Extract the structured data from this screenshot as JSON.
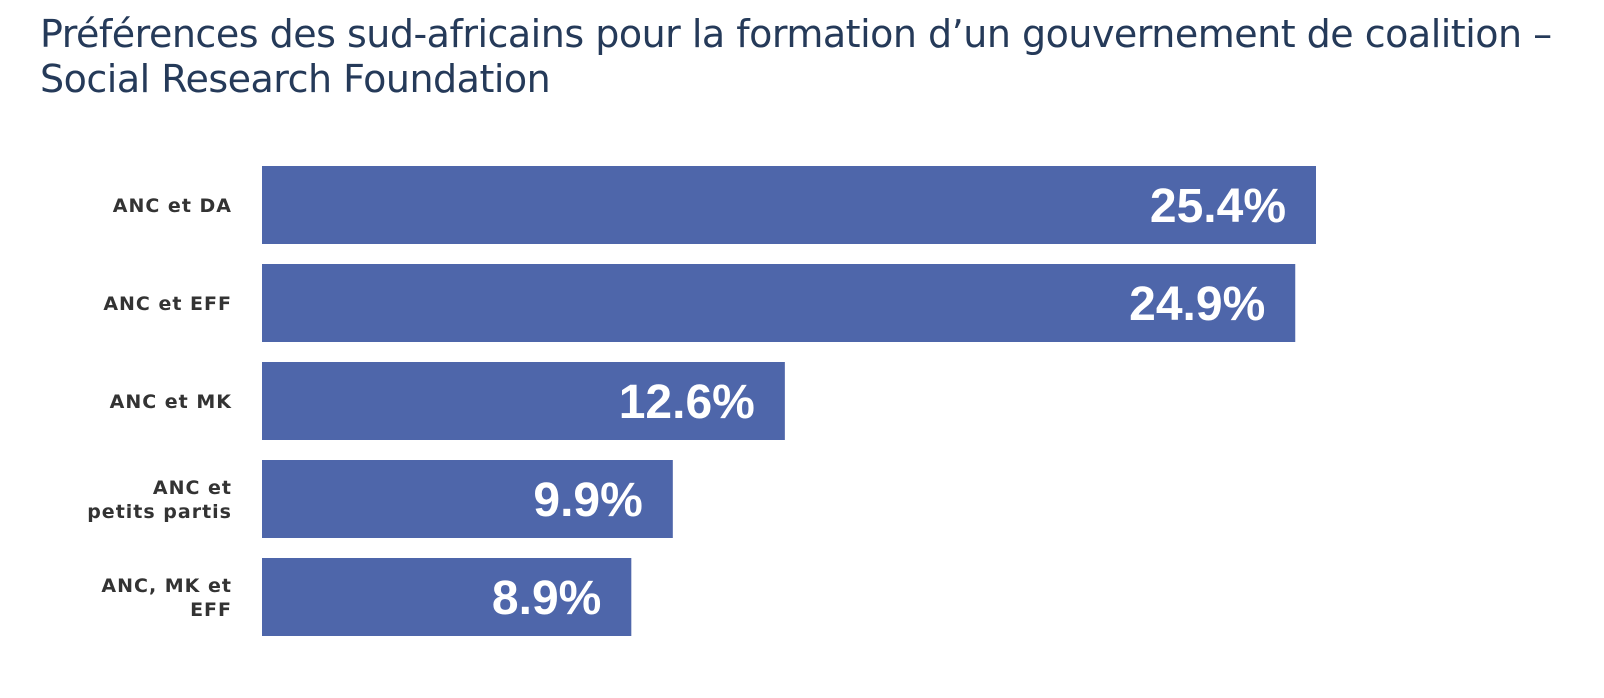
{
  "title": "Préférences des sud-africains pour la formation d’un gouvernement de coalition – Social Research Foundation",
  "colors": {
    "bar": "#4e66aa",
    "title": "#253a59",
    "category_label": "#333333",
    "value_label": "#ffffff"
  },
  "chart_data": {
    "type": "bar",
    "orientation": "horizontal",
    "title": "Préférences des sud-africains pour la formation d’un gouvernement de coalition – Social Research Foundation",
    "categories": [
      [
        "ANC et DA"
      ],
      [
        "ANC et EFF"
      ],
      [
        "ANC et MK"
      ],
      [
        "ANC et",
        "petits partis"
      ],
      [
        "ANC, MK et",
        "EFF"
      ]
    ],
    "values": [
      25.4,
      24.9,
      12.6,
      9.9,
      8.9
    ],
    "labels": [
      "25.4%",
      "24.9%",
      "12.6%",
      "9.9%",
      "8.9%"
    ],
    "unit": "%",
    "xlim": [
      0,
      25.4
    ],
    "xlabel": "",
    "ylabel": "",
    "grid": false,
    "legend": "none"
  }
}
